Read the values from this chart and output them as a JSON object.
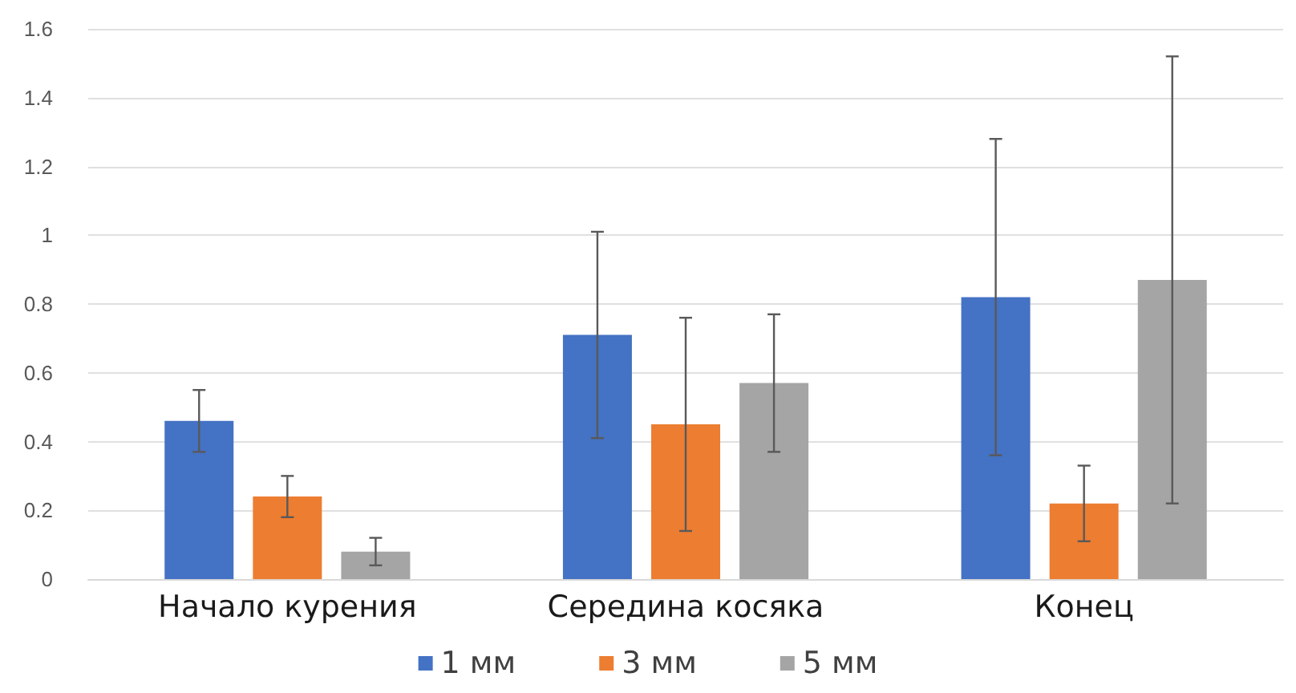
{
  "chart_data": {
    "type": "bar",
    "categories": [
      "Начало курения",
      "Середина косяка",
      "Конец"
    ],
    "series": [
      {
        "name": "1 мм",
        "color": "#4472c4",
        "values": [
          0.46,
          0.71,
          0.82
        ],
        "errors": [
          0.09,
          0.3,
          0.46
        ]
      },
      {
        "name": "3 мм",
        "color": "#ed7d31",
        "values": [
          0.24,
          0.45,
          0.22
        ],
        "errors": [
          0.06,
          0.31,
          0.11
        ]
      },
      {
        "name": "5 мм",
        "color": "#a5a5a5",
        "values": [
          0.08,
          0.57,
          0.87
        ],
        "errors": [
          0.04,
          0.2,
          0.65
        ]
      }
    ],
    "ylim": [
      0,
      1.6
    ],
    "yticks": [
      0,
      0.2,
      0.4,
      0.6,
      0.8,
      1,
      1.2,
      1.4,
      1.6
    ],
    "grid": "y",
    "legend": "bottom"
  }
}
